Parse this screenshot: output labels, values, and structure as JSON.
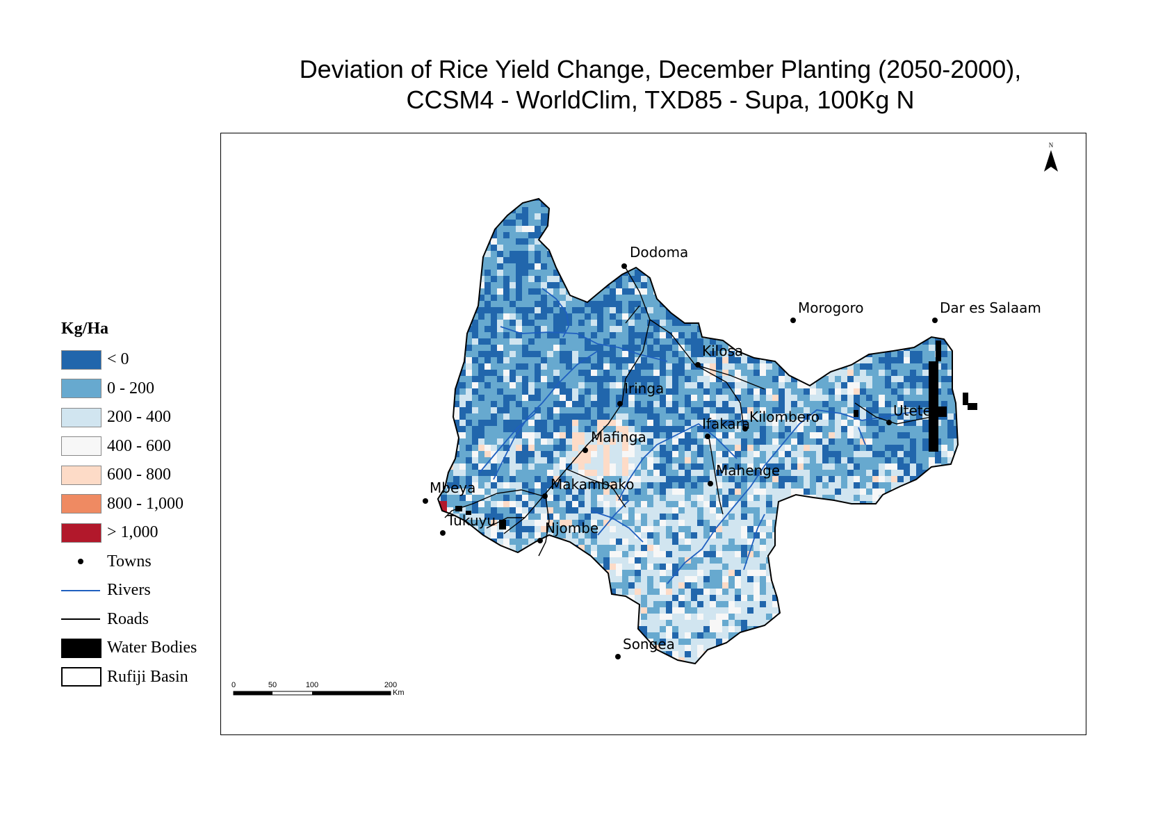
{
  "title": {
    "line1": "Deviation of Rice Yield Change, December Planting (2050-2000),",
    "line2": "CCSM4 - WorldClim, TXD85 - Supa, 100Kg N"
  },
  "legend": {
    "title": "Kg/Ha",
    "classes": [
      {
        "label": "< 0",
        "color": "#2166ac"
      },
      {
        "label": "0 - 200",
        "color": "#67a9cf"
      },
      {
        "label": "200 - 400",
        "color": "#d1e5f0"
      },
      {
        "label": "400 - 600",
        "color": "#f7f7f7"
      },
      {
        "label": "600 - 800",
        "color": "#fddbc7"
      },
      {
        "label": "800 - 1,000",
        "color": "#ef8a62"
      },
      {
        "label": "> 1,000",
        "color": "#b2182b"
      }
    ],
    "towns_label": "Towns",
    "rivers_label": "Rivers",
    "roads_label": "Roads",
    "water_label": "Water Bodies",
    "basin_label": "Rufiji Basin",
    "river_color": "#1f5fbf",
    "road_color": "#000000"
  },
  "towns": [
    "Dodoma",
    "Morogoro",
    "Dar es Salaam",
    "Kilosa",
    "Iringa",
    "Ifakara",
    "Kilombero",
    "Utete",
    "Mafinga",
    "Mahenge",
    "Makambako",
    "Mbeya",
    "Tukuyu",
    "Njombe",
    "Songea"
  ],
  "scale_bar": {
    "ticks": [
      "0",
      "50",
      "100",
      "200"
    ],
    "unit": "Km"
  },
  "north_arrow": {
    "label": "N"
  }
}
